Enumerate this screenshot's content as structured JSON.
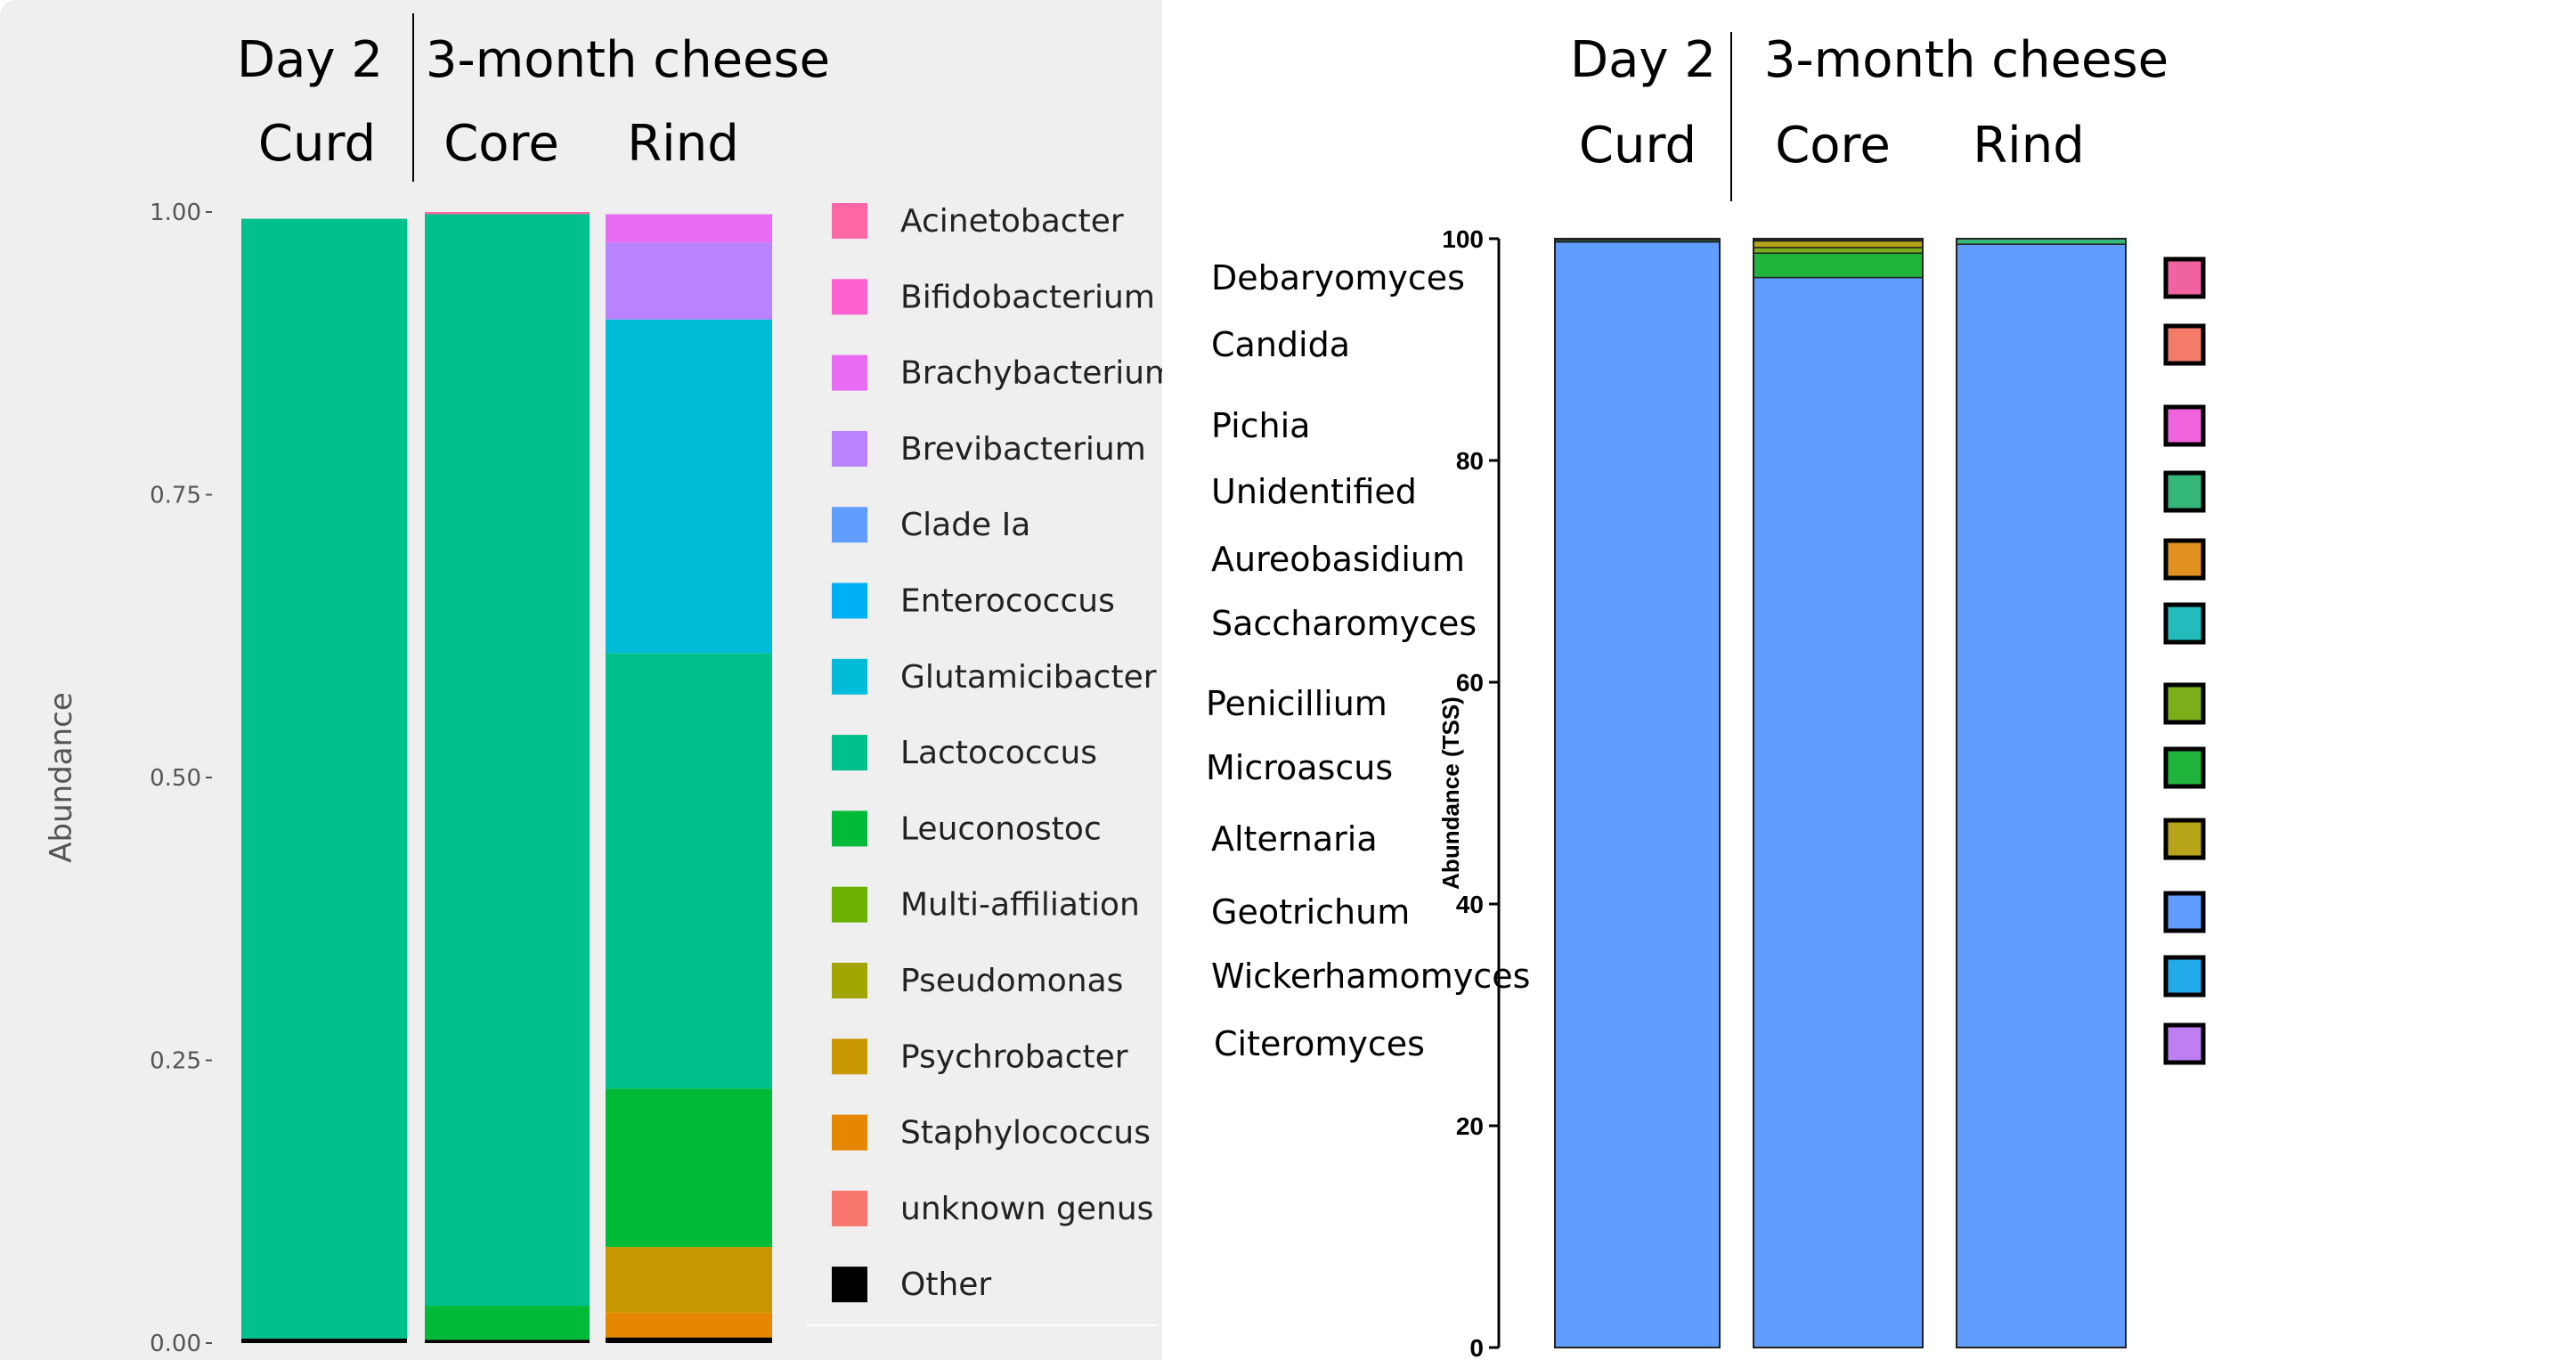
{
  "chart_data": [
    {
      "type": "bar",
      "stacked": true,
      "header": {
        "top_left": "Day 2",
        "top_right": "3-month cheese",
        "samples": [
          "Curd",
          "Core",
          "Rind"
        ]
      },
      "categories": [
        "Curd",
        "Core",
        "Rind"
      ],
      "ylabel": "Abundance",
      "ylim": [
        0,
        1
      ],
      "yticks": [
        "0.00",
        "0.25",
        "0.50",
        "0.75",
        "1.00"
      ],
      "grid": false,
      "legend_position": "right",
      "series": [
        {
          "name": "Other",
          "color": "#000000",
          "values": [
            0.004,
            0.003,
            0.005
          ]
        },
        {
          "name": "unknown genus",
          "color": "#f8766d",
          "values": [
            0,
            0,
            0
          ]
        },
        {
          "name": "Staphylococcus",
          "color": "#e58700",
          "values": [
            0,
            0,
            0.022
          ]
        },
        {
          "name": "Psychrobacter",
          "color": "#c99800",
          "values": [
            0,
            0,
            0.058
          ]
        },
        {
          "name": "Pseudomonas",
          "color": "#a3a500",
          "values": [
            0,
            0,
            0
          ]
        },
        {
          "name": "Multi-affiliation",
          "color": "#6bb100",
          "values": [
            0,
            0,
            0
          ]
        },
        {
          "name": "Leuconostoc",
          "color": "#00ba38",
          "values": [
            0,
            0.03,
            0.14
          ]
        },
        {
          "name": "Lactococcus",
          "color": "#00c08b",
          "values": [
            0.99,
            0.965,
            0.385
          ]
        },
        {
          "name": "Glutamicibacter",
          "color": "#00bcd8",
          "values": [
            0,
            0,
            0.295
          ]
        },
        {
          "name": "Enterococcus",
          "color": "#00b0f6",
          "values": [
            0,
            0,
            0
          ]
        },
        {
          "name": "Clade Ia",
          "color": "#619cff",
          "values": [
            0,
            0,
            0
          ]
        },
        {
          "name": "Brevibacterium",
          "color": "#b983ff",
          "values": [
            0,
            0,
            0.068
          ]
        },
        {
          "name": "Brachybacterium",
          "color": "#e76bf3",
          "values": [
            0,
            0,
            0.025
          ]
        },
        {
          "name": "Bifidobacterium",
          "color": "#fd61d1",
          "values": [
            0,
            0,
            0
          ]
        },
        {
          "name": "Acinetobacter",
          "color": "#ff67a4",
          "values": [
            0,
            0.002,
            0
          ]
        }
      ],
      "legend": [
        "Acinetobacter",
        "Bifidobacterium",
        "Brachybacterium",
        "Brevibacterium",
        "Clade Ia",
        "Enterococcus",
        "Glutamicibacter",
        "Lactococcus",
        "Leuconostoc",
        "Multi-affiliation",
        "Pseudomonas",
        "Psychrobacter",
        "Staphylococcus",
        "unknown genus",
        "Other"
      ]
    },
    {
      "type": "bar",
      "stacked": true,
      "header": {
        "top_left": "Day 2",
        "top_right": "3-month cheese",
        "samples": [
          "Curd",
          "Core",
          "Rind"
        ]
      },
      "categories": [
        "Curd",
        "Core",
        "Rind"
      ],
      "ylabel": "Abundance (TSS)",
      "ylim": [
        0,
        100
      ],
      "yticks": [
        "0",
        "20",
        "40",
        "60",
        "80",
        "100"
      ],
      "grid": false,
      "legend_position": "right",
      "series": [
        {
          "name": "Geotrichum",
          "color": "#619cff",
          "values": [
            99.7,
            96.5,
            99.5
          ]
        },
        {
          "name": "Microascus",
          "color": "#1fb53c",
          "values": [
            0,
            2.2,
            0
          ]
        },
        {
          "name": "Penicillium",
          "color": "#7aaf1a",
          "values": [
            0,
            0.5,
            0
          ]
        },
        {
          "name": "Alternaria",
          "color": "#b8a419",
          "values": [
            0,
            0.6,
            0
          ]
        },
        {
          "name": "Unidentified",
          "color": "#35b779",
          "values": [
            0.15,
            0.1,
            0.5
          ]
        },
        {
          "name": "Saccharomyces",
          "color": "#22bcbc",
          "values": [
            0.15,
            0,
            0
          ]
        },
        {
          "name": "Aureobasidium",
          "color": "#e0901e",
          "values": [
            0,
            0,
            0
          ]
        },
        {
          "name": "Pichia",
          "color": "#ef63dc",
          "values": [
            0,
            0,
            0
          ]
        },
        {
          "name": "Candida",
          "color": "#f47a6a",
          "values": [
            0,
            0,
            0
          ]
        },
        {
          "name": "Debaryomyces",
          "color": "#f063a0",
          "values": [
            0,
            0,
            0
          ]
        },
        {
          "name": "Wickerhamomyces",
          "color": "#22aaea",
          "values": [
            0,
            0,
            0
          ]
        },
        {
          "name": "Citeromyces",
          "color": "#bf7ff2",
          "values": [
            0,
            0,
            0
          ]
        }
      ],
      "legend": [
        "Debaryomyces",
        "Candida",
        "Pichia",
        "Unidentified",
        "Aureobasidium",
        "Saccharomyces",
        "Penicillium",
        "Microascus",
        "Alternaria",
        "Geotrichum",
        "Wickerhamomyces",
        "Citeromyces"
      ]
    }
  ]
}
